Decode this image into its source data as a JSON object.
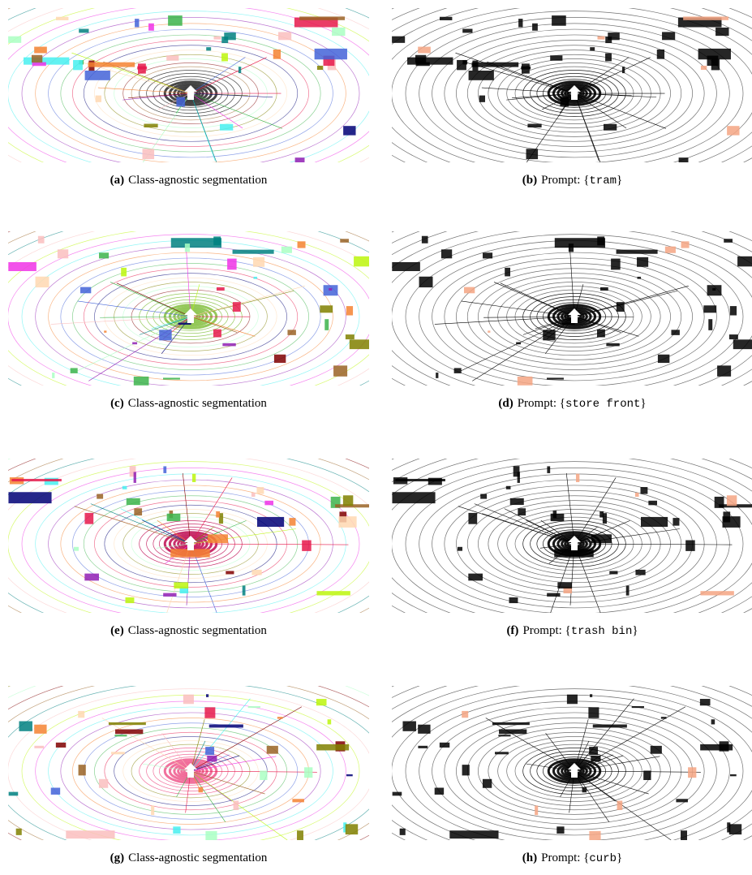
{
  "panels": [
    {
      "label": "(a)",
      "caption": "Class-agnostic segmentation"
    },
    {
      "label": "(b)",
      "caption": "Prompt: {",
      "keyword": "tram",
      "caption_end": "}"
    },
    {
      "label": "(c)",
      "caption": "Class-agnostic segmentation"
    },
    {
      "label": "(d)",
      "caption": "Prompt: {",
      "keyword": "store front",
      "caption_end": "}"
    },
    {
      "label": "(e)",
      "caption": "Class-agnostic segmentation"
    },
    {
      "label": "(f)",
      "caption": "Prompt: {",
      "keyword": "trash bin",
      "caption_end": "}"
    },
    {
      "label": "(g)",
      "caption": "Class-agnostic segmentation"
    },
    {
      "label": "(h)",
      "caption": "Prompt: {",
      "keyword": "curb",
      "caption_end": "}"
    }
  ]
}
